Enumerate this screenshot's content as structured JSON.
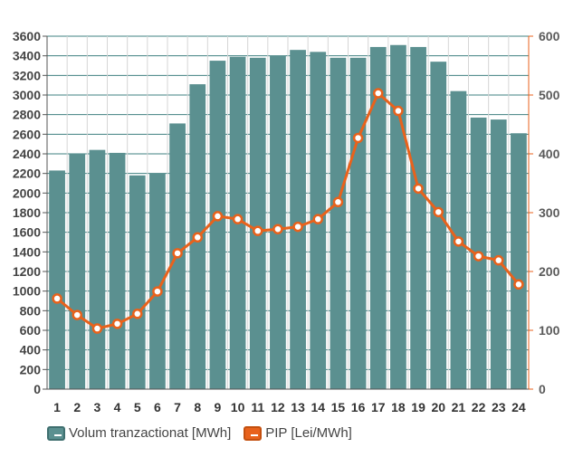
{
  "chart_data": {
    "type": "bar",
    "categories": [
      "1",
      "2",
      "3",
      "4",
      "5",
      "6",
      "7",
      "8",
      "9",
      "10",
      "11",
      "12",
      "13",
      "14",
      "15",
      "16",
      "17",
      "18",
      "19",
      "20",
      "21",
      "22",
      "23",
      "24"
    ],
    "series": [
      {
        "name": "Volum tranzactionat [MWh]",
        "type": "bar",
        "axis": "left",
        "color": "#5b9090",
        "values": [
          2230,
          2400,
          2440,
          2410,
          2180,
          2200,
          2710,
          3110,
          3350,
          3390,
          3380,
          3400,
          3460,
          3440,
          3380,
          3380,
          3490,
          3510,
          3490,
          3340,
          3040,
          2770,
          2750,
          2610
        ]
      },
      {
        "name": "PIP [Lei/MWh]",
        "type": "line",
        "axis": "right",
        "color": "#e8621c",
        "values": [
          154,
          126,
          103,
          111,
          128,
          166,
          231,
          258,
          294,
          289,
          269,
          272,
          276,
          289,
          318,
          427,
          503,
          473,
          341,
          301,
          251,
          226,
          219,
          178
        ]
      }
    ],
    "y_left": {
      "min": 0,
      "max": 3600,
      "step": 200
    },
    "y_right": {
      "min": 0,
      "max": 600,
      "step": 100
    },
    "grid": true,
    "legend_position": "bottom-left"
  }
}
